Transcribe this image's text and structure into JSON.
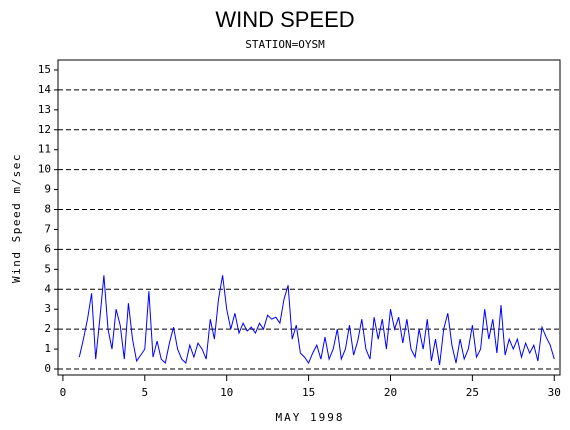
{
  "chart_data": {
    "type": "line",
    "title": "WIND SPEED",
    "subtitle": "STATION=OYSM",
    "x_label": "MAY 1998",
    "y_label": "Wind Speed m/sec",
    "xlim": [
      -0.3,
      30.35
    ],
    "ylim": [
      -0.3,
      15.5
    ],
    "xticks": [
      0,
      5,
      10,
      15,
      20,
      25,
      30
    ],
    "yticks": [
      0,
      1,
      2,
      3,
      4,
      5,
      6,
      7,
      8,
      9,
      10,
      11,
      12,
      13,
      14,
      15
    ],
    "ygrid": [
      0,
      2,
      4,
      6,
      8,
      10,
      12,
      14
    ],
    "series": [
      {
        "color": "#0000ff",
        "x": [
          1.0,
          1.25,
          1.5,
          1.75,
          2.0,
          2.25,
          2.5,
          2.75,
          3.0,
          3.25,
          3.5,
          3.75,
          4.0,
          4.25,
          4.5,
          4.75,
          5.0,
          5.25,
          5.5,
          5.75,
          6.0,
          6.25,
          6.5,
          6.75,
          7.0,
          7.25,
          7.5,
          7.75,
          8.0,
          8.25,
          8.5,
          8.75,
          9.0,
          9.25,
          9.5,
          9.75,
          10.0,
          10.25,
          10.5,
          10.75,
          11.0,
          11.25,
          11.5,
          11.75,
          12.0,
          12.25,
          12.5,
          12.75,
          13.0,
          13.25,
          13.5,
          13.75,
          14.0,
          14.25,
          14.5,
          14.75,
          15.0,
          15.25,
          15.5,
          15.75,
          16.0,
          16.25,
          16.5,
          16.75,
          17.0,
          17.25,
          17.5,
          17.75,
          18.0,
          18.25,
          18.5,
          18.75,
          19.0,
          19.25,
          19.5,
          19.75,
          20.0,
          20.25,
          20.5,
          20.75,
          21.0,
          21.25,
          21.5,
          21.75,
          22.0,
          22.25,
          22.5,
          22.75,
          23.0,
          23.25,
          23.5,
          23.75,
          24.0,
          24.25,
          24.5,
          24.75,
          25.0,
          25.25,
          25.5,
          25.75,
          26.0,
          26.25,
          26.5,
          26.75,
          27.0,
          27.25,
          27.5,
          27.75,
          28.0,
          28.25,
          28.5,
          28.75,
          29.0,
          29.25,
          29.5,
          29.75,
          30.0
        ],
        "values": [
          0.6,
          1.5,
          2.5,
          3.8,
          0.5,
          2.5,
          4.7,
          2.0,
          1.0,
          3.0,
          2.2,
          0.5,
          3.3,
          1.5,
          0.4,
          0.7,
          1.0,
          3.9,
          0.6,
          1.4,
          0.5,
          0.3,
          1.3,
          2.1,
          1.0,
          0.5,
          0.3,
          1.2,
          0.6,
          1.3,
          1.0,
          0.5,
          2.5,
          1.5,
          3.5,
          4.7,
          3.0,
          2.0,
          2.8,
          1.8,
          2.3,
          1.9,
          2.1,
          1.8,
          2.3,
          2.0,
          2.7,
          2.5,
          2.6,
          2.3,
          3.5,
          4.2,
          1.5,
          2.2,
          0.8,
          0.6,
          0.3,
          0.8,
          1.2,
          0.5,
          1.6,
          0.5,
          1.0,
          2.0,
          0.5,
          1.0,
          2.2,
          0.7,
          1.4,
          2.5,
          1.0,
          0.5,
          2.6,
          1.5,
          2.5,
          1.0,
          3.0,
          2.0,
          2.6,
          1.3,
          2.5,
          1.0,
          0.6,
          2.0,
          1.0,
          2.5,
          0.4,
          1.5,
          0.2,
          2.0,
          2.8,
          1.2,
          0.3,
          1.5,
          0.5,
          1.0,
          2.2,
          0.6,
          1.0,
          3.0,
          1.5,
          2.5,
          0.8,
          3.2,
          0.7,
          1.5,
          1.0,
          1.5,
          0.6,
          1.3,
          0.8,
          1.2,
          0.4,
          2.1,
          1.6,
          1.2,
          0.5
        ]
      }
    ]
  }
}
